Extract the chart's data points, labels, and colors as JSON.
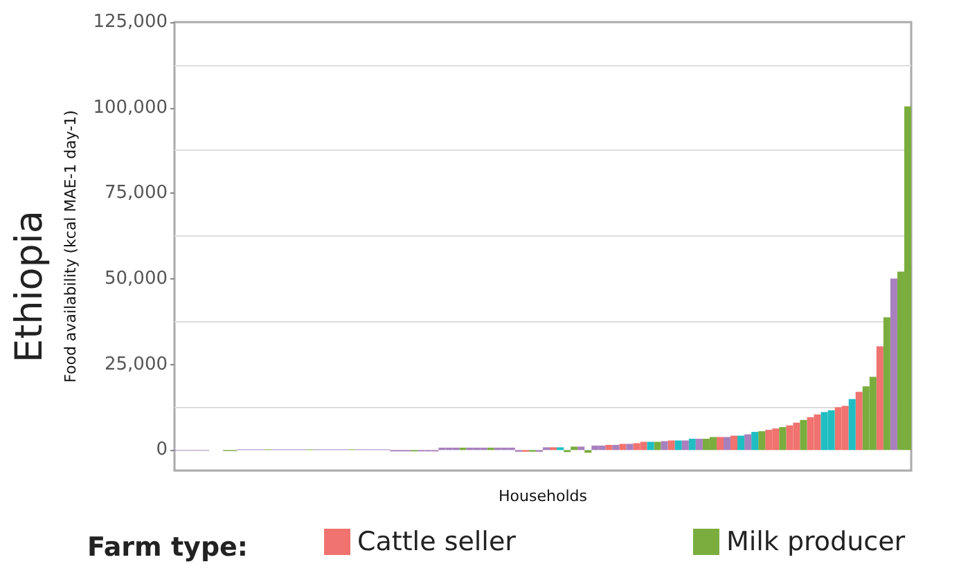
{
  "chart_data": {
    "type": "bar",
    "title": "Ethiopia",
    "xlabel": "Households",
    "ylabel": "Food availability (kcal MAE-1 day-1)",
    "legend_title": "Farm type:",
    "categories": [
      null,
      null,
      null,
      null,
      null,
      null,
      null,
      null,
      null,
      null,
      null,
      null,
      null,
      null,
      null,
      null,
      null,
      null,
      null,
      null,
      null,
      null,
      null,
      null,
      null,
      null,
      null,
      null,
      null,
      null,
      null,
      null,
      null,
      null,
      null,
      null,
      null,
      null,
      null,
      null,
      null,
      null,
      null,
      null,
      null,
      null,
      null,
      null,
      null,
      null,
      null,
      null,
      null,
      null,
      null,
      null,
      null,
      null,
      null,
      null,
      null,
      null,
      null,
      null,
      null,
      null,
      null,
      null,
      null,
      null,
      null,
      null,
      null,
      null,
      null,
      null,
      null,
      null,
      null,
      null,
      null,
      null,
      null,
      null,
      null,
      null,
      null,
      null,
      null,
      null,
      null,
      null,
      null,
      null,
      null,
      null,
      null,
      null,
      null,
      null,
      null,
      null,
      null,
      null,
      null,
      null
    ],
    "series": [
      {
        "name": "Cattle seller",
        "color": "#f0736f",
        "values": [
          null,
          null,
          null,
          null,
          null,
          null,
          null,
          null,
          null,
          null,
          null,
          null,
          null,
          null,
          null,
          null,
          null,
          null,
          null,
          null,
          null,
          null,
          null,
          null,
          null,
          null,
          null,
          null,
          null,
          null,
          null,
          null,
          null,
          null,
          null,
          null,
          null,
          null,
          null,
          null,
          null,
          null,
          null,
          null,
          null,
          null,
          null,
          null,
          null,
          null,
          -500,
          null,
          null,
          null,
          800,
          null,
          null,
          null,
          null,
          null,
          null,
          null,
          1500,
          null,
          1800,
          null,
          2000,
          2400,
          null,
          null,
          null,
          2800,
          null,
          null,
          null,
          null,
          null,
          null,
          3800,
          null,
          4200,
          null,
          null,
          null,
          null,
          5900,
          6300,
          null,
          7200,
          8000,
          null,
          9600,
          10400,
          null,
          null,
          12500,
          12900,
          null,
          17000,
          null,
          null,
          30300,
          null,
          null,
          null,
          null
        ]
      },
      {
        "name": "Milk producer",
        "color": "#7aad3e",
        "values": [
          null,
          null,
          null,
          null,
          null,
          null,
          null,
          -300,
          -300,
          null,
          null,
          null,
          null,
          200,
          null,
          null,
          null,
          null,
          null,
          200,
          null,
          null,
          null,
          null,
          null,
          200,
          null,
          null,
          null,
          null,
          null,
          null,
          null,
          null,
          -400,
          null,
          null,
          null,
          null,
          null,
          null,
          700,
          null,
          null,
          null,
          700,
          null,
          null,
          null,
          null,
          null,
          -500,
          null,
          null,
          null,
          null,
          -600,
          1000,
          null,
          -800,
          null,
          null,
          null,
          null,
          null,
          null,
          null,
          null,
          null,
          2400,
          null,
          null,
          null,
          null,
          null,
          null,
          3300,
          3800,
          null,
          null,
          null,
          null,
          null,
          null,
          5500,
          null,
          null,
          6700,
          null,
          null,
          8800,
          null,
          null,
          null,
          null,
          null,
          null,
          null,
          null,
          18600,
          21400,
          null,
          38800,
          null,
          52100,
          100400
        ]
      },
      {
        "color": "#20bec2",
        "values": [
          null,
          null,
          null,
          null,
          null,
          null,
          null,
          null,
          null,
          null,
          null,
          null,
          null,
          null,
          null,
          null,
          null,
          null,
          null,
          null,
          null,
          null,
          null,
          null,
          null,
          null,
          null,
          null,
          null,
          null,
          null,
          null,
          null,
          null,
          null,
          null,
          null,
          null,
          null,
          null,
          null,
          null,
          null,
          null,
          null,
          null,
          null,
          null,
          null,
          null,
          null,
          null,
          null,
          null,
          null,
          800,
          null,
          null,
          null,
          null,
          null,
          null,
          null,
          null,
          null,
          null,
          null,
          null,
          2400,
          null,
          null,
          null,
          2800,
          null,
          3300,
          null,
          null,
          null,
          null,
          null,
          null,
          4200,
          null,
          5300,
          null,
          null,
          null,
          null,
          null,
          null,
          null,
          null,
          null,
          11100,
          11600,
          null,
          null,
          14900,
          null,
          null,
          null,
          null,
          null,
          null,
          null,
          null
        ]
      },
      {
        "color": "#a880bd",
        "values": [
          -200,
          -200,
          -200,
          -200,
          -200,
          null,
          null,
          null,
          null,
          200,
          200,
          200,
          200,
          null,
          200,
          200,
          200,
          200,
          200,
          null,
          200,
          200,
          200,
          200,
          200,
          null,
          200,
          200,
          200,
          200,
          200,
          -400,
          -400,
          -400,
          null,
          -400,
          -400,
          -400,
          700,
          700,
          700,
          null,
          700,
          700,
          700,
          null,
          700,
          700,
          700,
          -500,
          null,
          null,
          -500,
          800,
          null,
          null,
          null,
          null,
          1000,
          null,
          1300,
          1300,
          null,
          1500,
          null,
          1800,
          null,
          null,
          null,
          null,
          2600,
          null,
          null,
          2800,
          null,
          3300,
          null,
          null,
          null,
          3800,
          null,
          null,
          4600,
          null,
          null,
          null,
          null,
          null,
          null,
          null,
          null,
          null,
          null,
          null,
          null,
          null,
          null,
          null,
          null,
          null,
          null,
          null,
          null,
          50100,
          null,
          null
        ]
      }
    ],
    "ylim": [
      -6000,
      125000
    ],
    "yticks": [
      {
        "value": 0,
        "label": "0"
      },
      {
        "value": 12500,
        "label": null
      },
      {
        "value": 25000,
        "label": "25,000"
      },
      {
        "value": 37500,
        "label": null
      },
      {
        "value": 50000,
        "label": "50,000"
      },
      {
        "value": 62500,
        "label": null
      },
      {
        "value": 75000,
        "label": "75,000"
      },
      {
        "value": 87500,
        "label": null
      },
      {
        "value": 100000,
        "label": "100,000"
      },
      {
        "value": 112500,
        "label": null
      },
      {
        "value": 125000,
        "label": "125,000"
      }
    ],
    "grid": "y",
    "legend": "bottom",
    "tick_labels": "y"
  }
}
